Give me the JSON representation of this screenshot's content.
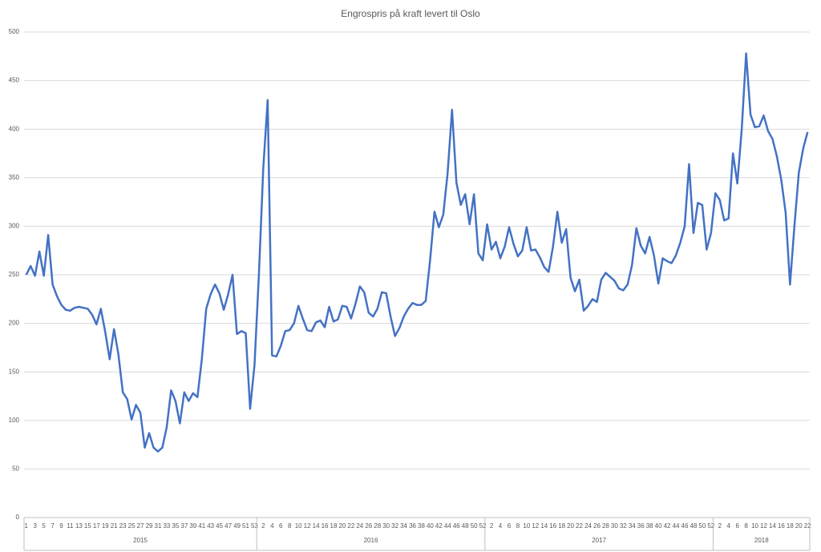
{
  "chart_data": {
    "type": "line",
    "title": "Engrospris på kraft levert til Oslo",
    "categories": [
      "1",
      null,
      "3",
      null,
      "5",
      null,
      "7",
      null,
      "9",
      null,
      "11",
      null,
      "13",
      null,
      "15",
      null,
      "17",
      null,
      "19",
      null,
      "21",
      null,
      "23",
      null,
      "25",
      null,
      "27",
      null,
      "29",
      null,
      "31",
      null,
      "33",
      null,
      "35",
      null,
      "37",
      null,
      "39",
      null,
      "41",
      null,
      "43",
      null,
      "45",
      null,
      "47",
      null,
      "49",
      null,
      "51",
      null,
      "53",
      null,
      "2",
      null,
      "4",
      null,
      "6",
      null,
      "8",
      null,
      "10",
      null,
      "12",
      null,
      "14",
      null,
      "16",
      null,
      "18",
      null,
      "20",
      null,
      "22",
      null,
      "24",
      null,
      "26",
      null,
      "28",
      null,
      "30",
      null,
      "32",
      null,
      "34",
      null,
      "36",
      null,
      "38",
      null,
      "40",
      null,
      "42",
      null,
      "44",
      null,
      "46",
      null,
      "48",
      null,
      "50",
      null,
      "52",
      null,
      "2",
      null,
      "4",
      null,
      "6",
      null,
      "8",
      null,
      "10",
      null,
      "12",
      null,
      "14",
      null,
      "16",
      null,
      "18",
      null,
      "20",
      null,
      "22",
      null,
      "24",
      null,
      "26",
      null,
      "28",
      null,
      "30",
      null,
      "32",
      null,
      "34",
      null,
      "36",
      null,
      "38",
      null,
      "40",
      null,
      "42",
      null,
      "44",
      null,
      "46",
      null,
      "48",
      null,
      "50",
      null,
      "52",
      null,
      "2",
      null,
      "4",
      null,
      "6",
      null,
      "8",
      null,
      "10",
      null,
      "12",
      null,
      "14",
      null,
      "16",
      null,
      "18",
      null,
      "20",
      null,
      "22"
    ],
    "groups": [
      {
        "label": "2015",
        "size": 53
      },
      {
        "label": "2016",
        "size": 52
      },
      {
        "label": "2017",
        "size": 52
      },
      {
        "label": "2018",
        "size": 22
      }
    ],
    "series": [
      {
        "color": "#4472c4",
        "values": [
          250,
          259,
          249,
          274,
          249,
          291,
          240,
          228,
          219,
          214,
          213,
          216,
          217,
          216,
          215,
          209,
          199,
          215,
          191,
          163,
          194,
          168,
          129,
          122,
          101,
          116,
          108,
          72,
          87,
          72,
          68,
          72,
          93,
          131,
          120,
          97,
          129,
          120,
          128,
          124,
          163,
          215,
          230,
          240,
          231,
          214,
          230,
          250,
          189,
          192,
          190,
          112,
          157,
          250,
          360,
          430,
          167,
          166,
          177,
          192,
          193,
          200,
          218,
          205,
          193,
          192,
          201,
          203,
          196,
          217,
          202,
          204,
          218,
          217,
          205,
          220,
          238,
          232,
          211,
          207,
          215,
          232,
          231,
          207,
          187,
          195,
          207,
          215,
          221,
          219,
          219,
          223,
          265,
          315,
          299,
          312,
          355,
          420,
          345,
          322,
          333,
          302,
          333,
          272,
          265,
          302,
          276,
          284,
          267,
          279,
          299,
          282,
          269,
          275,
          299,
          275,
          276,
          268,
          258,
          253,
          279,
          315,
          283,
          297,
          247,
          233,
          245,
          213,
          218,
          225,
          222,
          245,
          252,
          248,
          244,
          236,
          234,
          240,
          260,
          298,
          280,
          272,
          289,
          270,
          241,
          267,
          264,
          262,
          270,
          283,
          300,
          364,
          293,
          324,
          322,
          276,
          293,
          334,
          327,
          306,
          308,
          375,
          344,
          400,
          478,
          415,
          402,
          403,
          414,
          398,
          390,
          372,
          348,
          314,
          240,
          300,
          355,
          380,
          397
        ]
      }
    ],
    "ylim": [
      0,
      500
    ],
    "yticks": [
      0,
      50,
      100,
      150,
      200,
      250,
      300,
      350,
      400,
      450,
      500
    ],
    "grid": true
  }
}
